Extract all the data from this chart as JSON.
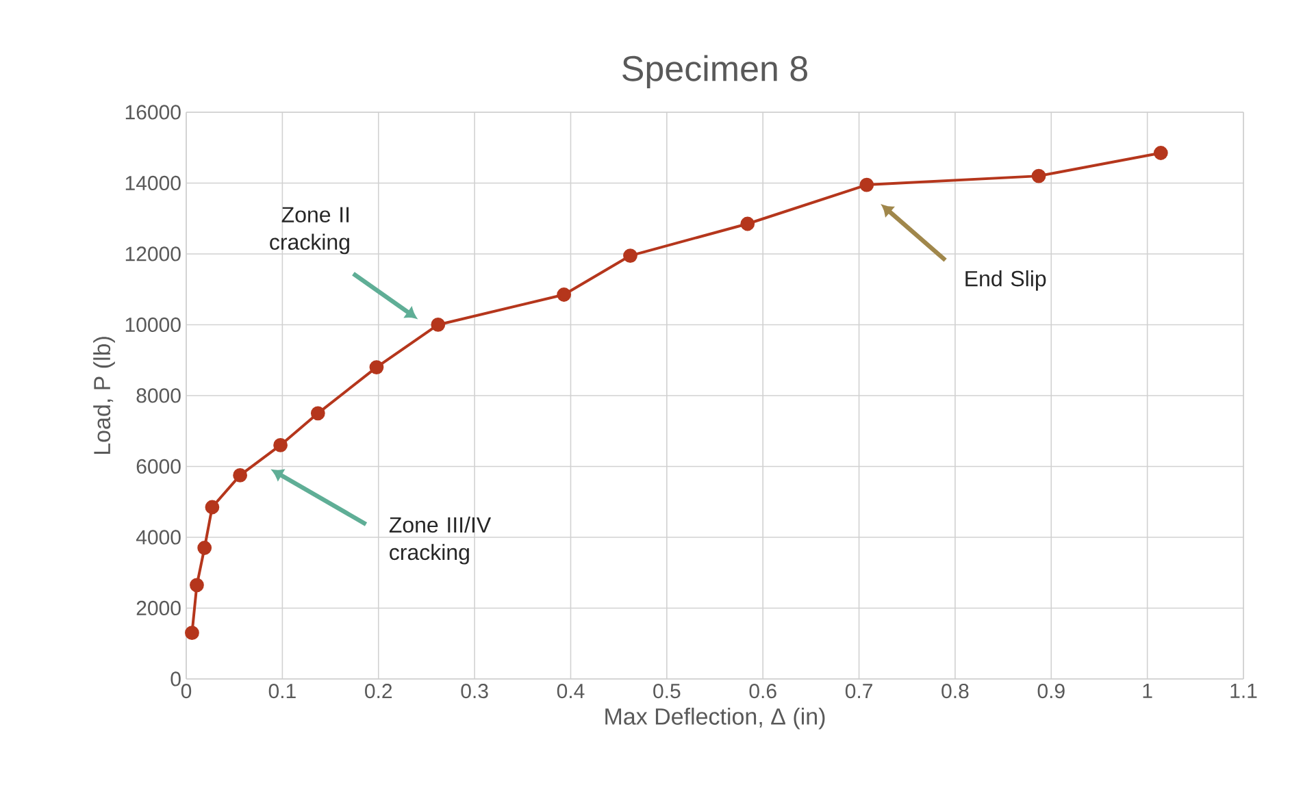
{
  "chart_data": {
    "type": "line",
    "title": "Specimen 8",
    "xlabel": "Max Deflection, Δ (in)",
    "ylabel": "Load, P (lb)",
    "x": [
      0.006,
      0.011,
      0.019,
      0.027,
      0.056,
      0.098,
      0.137,
      0.198,
      0.262,
      0.393,
      0.462,
      0.584,
      0.708,
      0.887,
      1.014
    ],
    "series": [
      {
        "color": "#b5361c",
        "values": [
          1300,
          2650,
          3700,
          4850,
          5750,
          6600,
          7500,
          8800,
          10000,
          10850,
          11950,
          12850,
          13950,
          14200,
          14850
        ]
      }
    ],
    "xlim": [
      0,
      1.1
    ],
    "ylim": [
      0,
      16000
    ],
    "xticks": [
      0,
      0.1,
      0.2,
      0.3,
      0.4,
      0.5,
      0.6,
      0.7,
      0.8,
      0.9,
      1,
      1.1
    ],
    "yticks": [
      0,
      2000,
      4000,
      6000,
      8000,
      10000,
      12000,
      14000,
      16000
    ],
    "grid": true,
    "marker": "circle",
    "line_style": "solid",
    "annotations": [
      "Zone II cracking",
      "Zone III/IV cracking",
      "End Slip"
    ]
  }
}
